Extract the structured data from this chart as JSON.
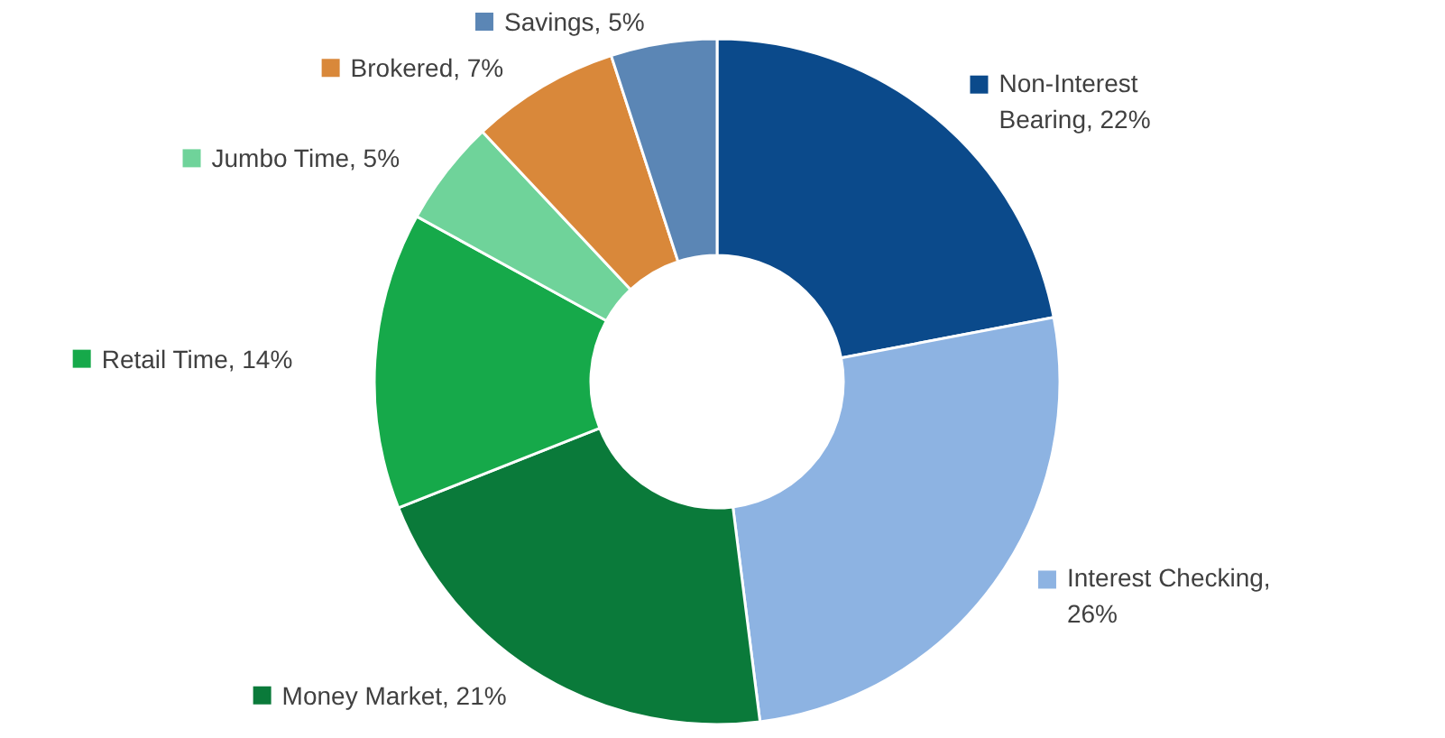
{
  "chart_data": {
    "type": "donut",
    "categories": [
      "Non-Interest Bearing, 22%",
      "Interest Checking, 26%",
      "Money Market, 21%",
      "Retail Time, 14%",
      "Jumbo Time, 5%",
      "Brokered, 7%",
      "Savings, 5%"
    ],
    "values": [
      22,
      26,
      21,
      14,
      5,
      7,
      5
    ],
    "colors": [
      "#0b4a8b",
      "#8db3e2",
      "#0a7a3a",
      "#16a94a",
      "#6fd39a",
      "#d9883a",
      "#5b86b5"
    ],
    "legend": "top left"
  }
}
